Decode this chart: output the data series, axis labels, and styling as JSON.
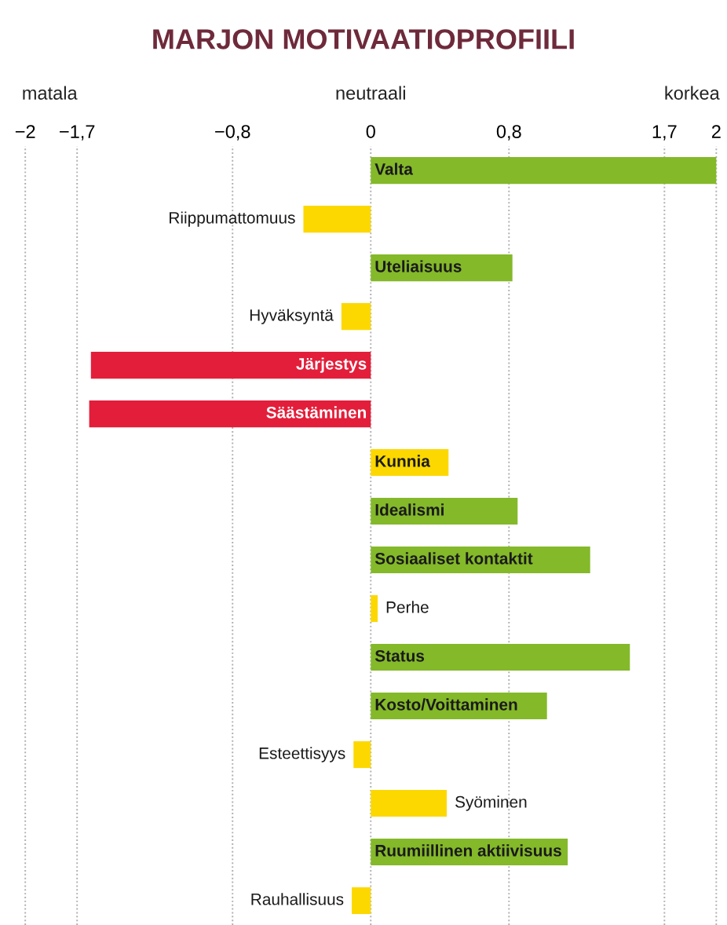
{
  "chart_data": {
    "type": "bar",
    "orientation": "horizontal",
    "title": "MARJON MOTIVAATIOPROFIILI",
    "categories": [
      "Valta",
      "Riippumattomuus",
      "Uteliaisuus",
      "Hyväksyntä",
      "Järjestys",
      "Säästäminen",
      "Kunnia",
      "Idealismi",
      "Sosiaaliset kontaktit",
      "Perhe",
      "Status",
      "Kosto/Voittaminen",
      "Esteettisyys",
      "Syöminen",
      "Ruumiillinen aktiivisuus",
      "Rauhallisuus"
    ],
    "values": [
      2.0,
      -0.39,
      0.82,
      -0.17,
      -1.62,
      -1.63,
      0.45,
      0.85,
      1.27,
      0.04,
      1.5,
      1.02,
      -0.1,
      0.44,
      1.14,
      -0.11
    ],
    "colors": [
      "#84b92a",
      "#fcd800",
      "#84b92a",
      "#fcd800",
      "#e31e3a",
      "#e31e3a",
      "#fcd800",
      "#84b92a",
      "#84b92a",
      "#fcd800",
      "#84b92a",
      "#84b92a",
      "#fcd800",
      "#fcd800",
      "#84b92a",
      "#fcd800"
    ],
    "xlim": [
      -2.02,
      2.02
    ],
    "xticks": [
      {
        "value": -2,
        "label": "−2"
      },
      {
        "value": -1.7,
        "label": "−1,7"
      },
      {
        "value": -0.8,
        "label": "−0,8"
      },
      0,
      {
        "value": 0.8,
        "label": "0,8"
      },
      {
        "value": 1.7,
        "label": "1,7"
      },
      2
    ],
    "grid": "x",
    "tick_labels": "x",
    "annotations": [
      "matala",
      "neutraali",
      "korkea"
    ]
  }
}
